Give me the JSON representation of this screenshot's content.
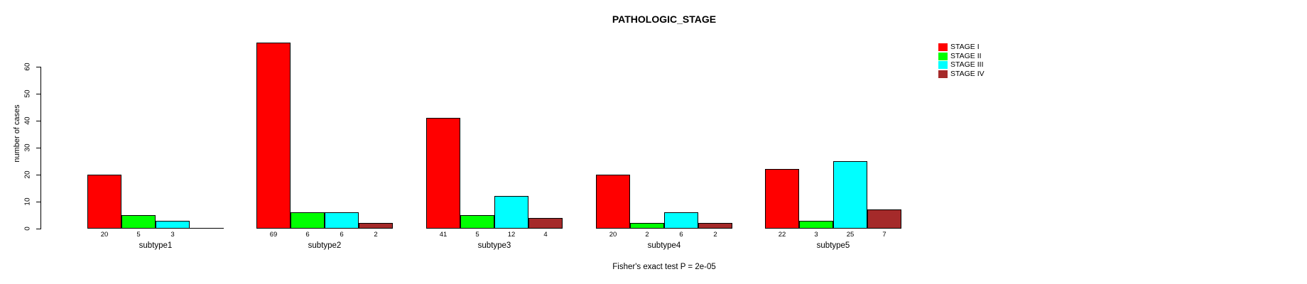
{
  "title": "PATHOLOGIC_STAGE",
  "chart_data": {
    "type": "bar",
    "title": "PATHOLOGIC_STAGE",
    "xlabel": "",
    "ylabel": "number of cases",
    "categories": [
      "subtype1",
      "subtype2",
      "subtype3",
      "subtype4",
      "subtype5"
    ],
    "series": [
      {
        "name": "STAGE I",
        "color": "#FF0000",
        "values": [
          20,
          69,
          41,
          20,
          22
        ]
      },
      {
        "name": "STAGE II",
        "color": "#00FF00",
        "values": [
          5,
          6,
          5,
          2,
          3
        ]
      },
      {
        "name": "STAGE III",
        "color": "#00FFFF",
        "values": [
          3,
          6,
          12,
          6,
          25
        ]
      },
      {
        "name": "STAGE IV",
        "color": "#A52A2A",
        "values": [
          0,
          2,
          4,
          2,
          7
        ]
      }
    ],
    "bar_value_labels_shown": true,
    "zero_value_labels_hidden": true,
    "yticks": [
      0,
      10,
      20,
      30,
      40,
      50,
      60
    ],
    "ylim": [
      0,
      60
    ],
    "grid": false,
    "bar_border_color": "#000000",
    "legend_position": "top-right",
    "annotation": "Fisher's exact test P = 2e-05"
  }
}
